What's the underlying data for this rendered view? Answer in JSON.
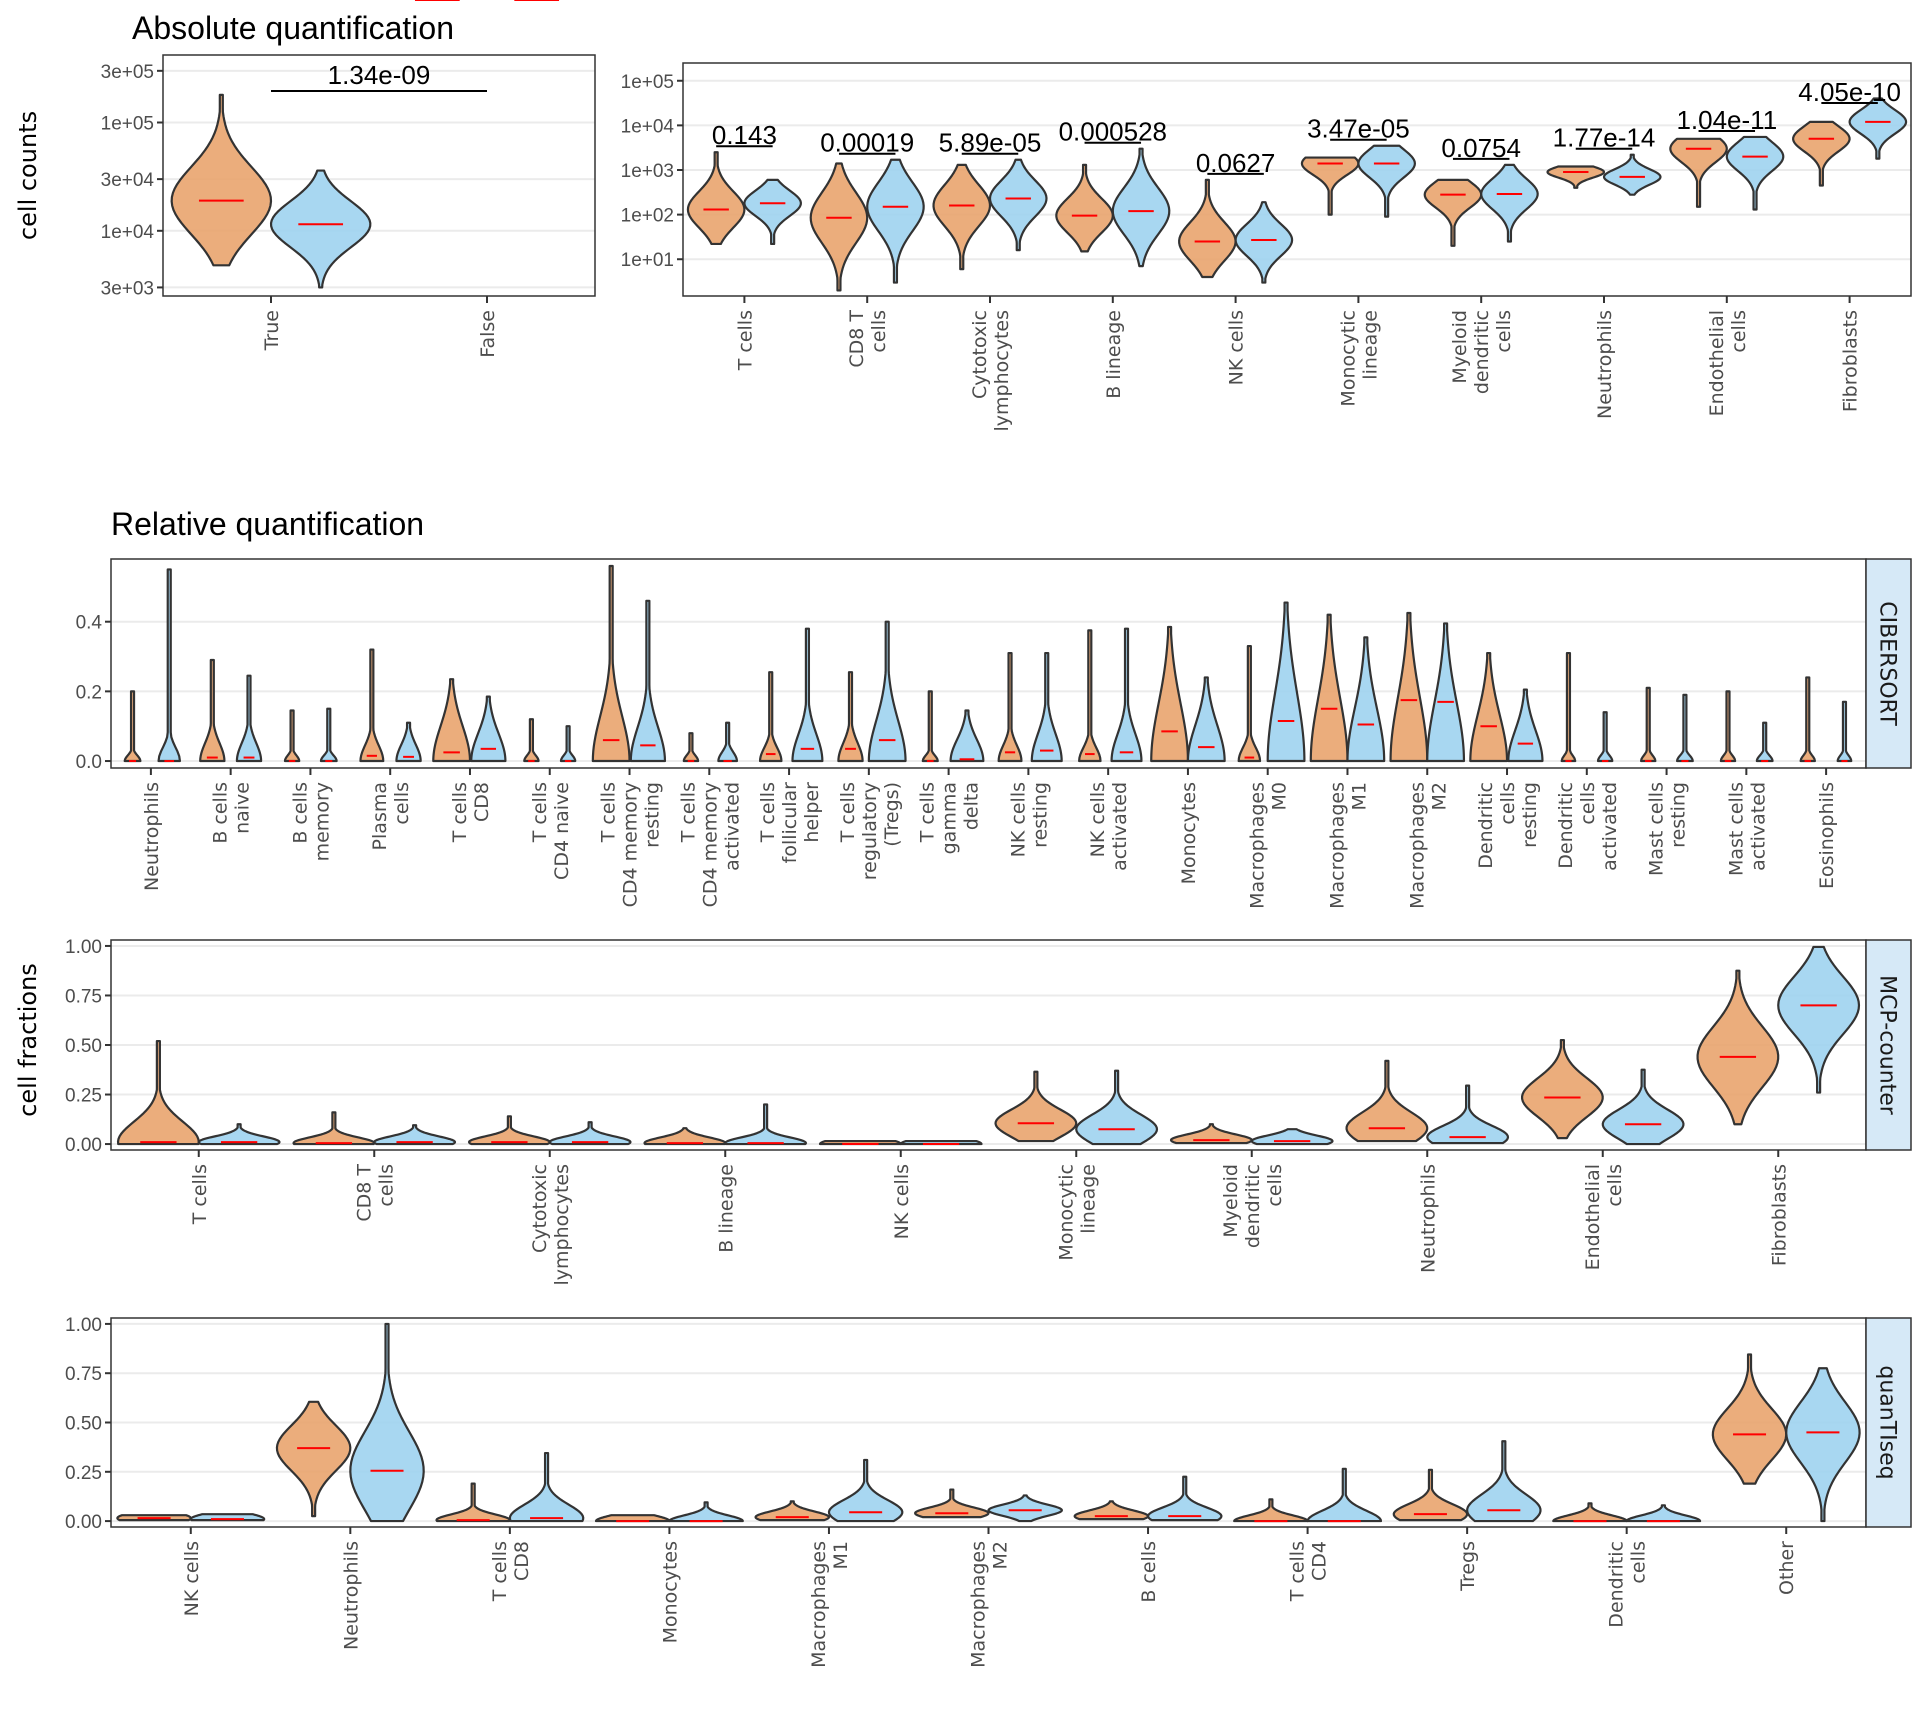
{
  "colors": {
    "group_true": "#E9A46E",
    "group_false": "#9FD3F0",
    "median": "#FF0000",
    "outline": "#333333",
    "strip_fill": "#D6E9F7",
    "grid": "#EBEBEB"
  },
  "titles": {
    "absolute": "Absolute quantification",
    "relative": "Relative quantification"
  },
  "chart_data": [
    {
      "id": "abs-total",
      "type": "violin",
      "title": "Absolute quantification",
      "ylabel": "cell counts",
      "yscale": "log10",
      "ylim": [
        2500,
        420000
      ],
      "yticks": [
        3000,
        10000,
        30000,
        100000,
        300000
      ],
      "ytick_labels": [
        "3e+03",
        "1e+04",
        "3e+04",
        "1e+05",
        "3e+05"
      ],
      "grid": true,
      "categories": [
        "True",
        "False"
      ],
      "series": [
        {
          "name": "True",
          "median": [
            19000
          ],
          "min": [
            4800
          ],
          "max": [
            180000
          ],
          "q1": [
            12000
          ],
          "q3": [
            30000
          ]
        },
        {
          "name": "False",
          "median": [
            11500
          ],
          "min": [
            3000
          ],
          "max": [
            36000
          ],
          "q1": [
            8000
          ],
          "q3": [
            15000
          ]
        }
      ],
      "annotations": [
        {
          "text": "1.34e-09",
          "between": [
            "True",
            "False"
          ]
        }
      ]
    },
    {
      "id": "abs-celltypes",
      "type": "violin",
      "yscale": "log10",
      "ylim": [
        1.5,
        250000
      ],
      "yticks": [
        10,
        100,
        1000,
        10000,
        100000
      ],
      "ytick_labels": [
        "1e+01",
        "1e+02",
        "1e+03",
        "1e+04",
        "1e+05"
      ],
      "grid": true,
      "categories": [
        "T cells",
        "CD8 T\ncells",
        "Cytotoxic\nlymphocytes",
        "B lineage",
        "NK cells",
        "Monocytic\nlineage",
        "Myeloid\ndendritic\ncells",
        "Neutrophils",
        "Endothelial\ncells",
        "Fibroblasts"
      ],
      "series": [
        {
          "name": "True",
          "median": [
            130,
            85,
            160,
            95,
            25,
            1400,
            280,
            900,
            3000,
            5000
          ],
          "min": [
            22,
            2,
            6,
            15,
            4,
            100,
            20,
            400,
            150,
            450
          ],
          "max": [
            2500,
            1400,
            1300,
            1300,
            600,
            1900,
            600,
            1200,
            5000,
            12000
          ]
        },
        {
          "name": "False",
          "median": [
            180,
            150,
            230,
            120,
            27,
            1400,
            290,
            700,
            2000,
            12000
          ],
          "min": [
            22,
            3,
            16,
            7,
            3,
            90,
            25,
            280,
            130,
            1800
          ],
          "max": [
            600,
            1700,
            1700,
            3000,
            190,
            3500,
            1300,
            2200,
            5500,
            40000
          ]
        }
      ],
      "annotations": [
        {
          "text": "0.143",
          "category": "T cells"
        },
        {
          "text": "0.00019",
          "category": "CD8 T cells"
        },
        {
          "text": "5.89e-05",
          "category": "Cytotoxic lymphocytes"
        },
        {
          "text": "0.000528",
          "category": "B lineage"
        },
        {
          "text": "0.0627",
          "category": "NK cells"
        },
        {
          "text": "3.47e-05",
          "category": "Monocytic lineage"
        },
        {
          "text": "0.0754",
          "category": "Myeloid dendritic cells"
        },
        {
          "text": "1.77e-14",
          "category": "Neutrophils"
        },
        {
          "text": "1.04e-11",
          "category": "Endothelial cells"
        },
        {
          "text": "4.05e-10",
          "category": "Fibroblasts"
        }
      ]
    },
    {
      "id": "cibersort",
      "type": "violin",
      "title": "Relative quantification",
      "facet": "CIBERSORT",
      "ylim": [
        -0.02,
        0.58
      ],
      "yticks": [
        0.0,
        0.2,
        0.4
      ],
      "ytick_labels": [
        "0.0",
        "0.2",
        "0.4"
      ],
      "grid": true,
      "categories": [
        "Neutrophils",
        "B cells\nnaive",
        "B cells\nmemory",
        "Plasma\ncells",
        "T cells\nCD8",
        "T cells\nCD4 naive",
        "T cells\nCD4 memory\nresting",
        "T cells\nCD4 memory\nactivated",
        "T cells\nfollicular\nhelper",
        "T cells\nregulatory\n(Tregs)",
        "T cells\ngamma\ndelta",
        "NK cells\nresting",
        "NK cells\nactivated",
        "Monocytes",
        "Macrophages\nM0",
        "Macrophages\nM1",
        "Macrophages\nM2",
        "Dendritic\ncells\nresting",
        "Dendritic\ncells\nactivated",
        "Mast cells\nresting",
        "Mast cells\nactivated",
        "Eosinophils"
      ],
      "series": [
        {
          "name": "True",
          "median": [
            0.0,
            0.01,
            0.0,
            0.015,
            0.025,
            0.0,
            0.06,
            0.0,
            0.02,
            0.035,
            0.0,
            0.025,
            0.02,
            0.085,
            0.01,
            0.15,
            0.175,
            0.1,
            0.0,
            0.0,
            0.0,
            0.0
          ],
          "max": [
            0.2,
            0.29,
            0.145,
            0.32,
            0.235,
            0.12,
            0.56,
            0.08,
            0.255,
            0.255,
            0.2,
            0.31,
            0.375,
            0.385,
            0.33,
            0.42,
            0.425,
            0.31,
            0.31,
            0.21,
            0.2,
            0.24
          ],
          "bulk": [
            0.02,
            0.08,
            0.01,
            0.07,
            0.17,
            0.01,
            0.2,
            0.01,
            0.06,
            0.08,
            0.015,
            0.07,
            0.06,
            0.28,
            0.06,
            0.36,
            0.38,
            0.25,
            0.005,
            0.01,
            0.01,
            0.01
          ]
        },
        {
          "name": "False",
          "median": [
            0.0,
            0.01,
            0.0,
            0.012,
            0.035,
            0.0,
            0.045,
            0.0,
            0.035,
            0.06,
            0.005,
            0.03,
            0.025,
            0.04,
            0.115,
            0.105,
            0.17,
            0.05,
            0.0,
            0.0,
            0.0,
            0.0
          ],
          "max": [
            0.55,
            0.245,
            0.15,
            0.11,
            0.185,
            0.1,
            0.46,
            0.11,
            0.38,
            0.4,
            0.145,
            0.31,
            0.38,
            0.24,
            0.455,
            0.355,
            0.395,
            0.205,
            0.14,
            0.19,
            0.11,
            0.17
          ],
          "bulk": [
            0.06,
            0.08,
            0.02,
            0.08,
            0.15,
            0.01,
            0.15,
            0.04,
            0.12,
            0.18,
            0.14,
            0.12,
            0.12,
            0.17,
            0.38,
            0.3,
            0.36,
            0.15,
            0.01,
            0.02,
            0.02,
            0.005
          ]
        }
      ]
    },
    {
      "id": "mcp-counter",
      "type": "violin",
      "facet": "MCP-counter",
      "ylabel": "cell fractions",
      "ylim": [
        -0.03,
        1.03
      ],
      "yticks": [
        0.0,
        0.25,
        0.5,
        0.75,
        1.0
      ],
      "ytick_labels": [
        "0.00",
        "0.25",
        "0.50",
        "0.75",
        "1.00"
      ],
      "grid": true,
      "categories": [
        "T cells",
        "CD8 T\ncells",
        "Cytotoxic\nlymphocytes",
        "B lineage",
        "NK cells",
        "Monocytic\nlineage",
        "Myeloid\ndendritic\ncells",
        "Neutrophils",
        "Endothelial\ncells",
        "Fibroblasts"
      ],
      "series": [
        {
          "name": "True",
          "median": [
            0.01,
            0.005,
            0.01,
            0.005,
            0.0,
            0.105,
            0.02,
            0.08,
            0.235,
            0.44
          ],
          "min": [
            0.0,
            0.0,
            0.0,
            0.0,
            0.0,
            0.015,
            0.005,
            0.015,
            0.03,
            0.1
          ],
          "max": [
            0.52,
            0.16,
            0.14,
            0.08,
            0.015,
            0.365,
            0.1,
            0.42,
            0.525,
            0.875
          ]
        },
        {
          "name": "False",
          "median": [
            0.01,
            0.01,
            0.01,
            0.005,
            0.0,
            0.075,
            0.015,
            0.035,
            0.1,
            0.7
          ],
          "min": [
            0.0,
            0.0,
            0.0,
            0.0,
            0.0,
            0.0,
            0.0,
            0.005,
            0.0,
            0.26
          ],
          "max": [
            0.1,
            0.095,
            0.11,
            0.2,
            0.015,
            0.37,
            0.075,
            0.295,
            0.375,
            0.995
          ]
        }
      ]
    },
    {
      "id": "quantiseq",
      "type": "violin",
      "facet": "quanTIseq",
      "ylim": [
        -0.03,
        1.03
      ],
      "yticks": [
        0.0,
        0.25,
        0.5,
        0.75,
        1.0
      ],
      "ytick_labels": [
        "0.00",
        "0.25",
        "0.50",
        "0.75",
        "1.00"
      ],
      "grid": true,
      "categories": [
        "NK cells",
        "Neutrophils",
        "T cells\nCD8",
        "Monocytes",
        "Macrophages\nM1",
        "Macrophages\nM2",
        "B cells",
        "T cells\nCD4",
        "Tregs",
        "Dendritic\ncells",
        "Other"
      ],
      "series": [
        {
          "name": "True",
          "median": [
            0.015,
            0.37,
            0.005,
            0.0,
            0.02,
            0.04,
            0.025,
            0.0,
            0.035,
            0.0,
            0.44
          ],
          "min": [
            0.005,
            0.025,
            0.0,
            0.0,
            0.005,
            0.02,
            0.01,
            0.0,
            0.005,
            0.0,
            0.19
          ],
          "max": [
            0.03,
            0.605,
            0.19,
            0.03,
            0.1,
            0.16,
            0.1,
            0.11,
            0.26,
            0.09,
            0.845
          ]
        },
        {
          "name": "False",
          "median": [
            0.01,
            0.255,
            0.015,
            0.0,
            0.045,
            0.055,
            0.025,
            0.0,
            0.055,
            0.0,
            0.45
          ],
          "min": [
            0.005,
            0.0,
            0.0,
            0.0,
            0.0,
            0.0,
            0.005,
            0.0,
            0.0,
            0.0,
            0.0
          ],
          "max": [
            0.035,
            1.0,
            0.345,
            0.095,
            0.31,
            0.13,
            0.225,
            0.265,
            0.405,
            0.08,
            0.775
          ]
        }
      ]
    }
  ]
}
